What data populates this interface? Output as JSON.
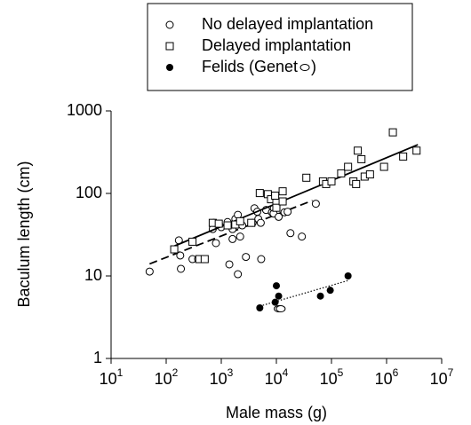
{
  "chart_data": {
    "type": "scatter",
    "x_label": "Male mass (g)",
    "y_label": "Baculum length (cm)",
    "x_log": true,
    "y_log": true,
    "xlim": [
      10,
      10000000
    ],
    "ylim": [
      1,
      1000
    ],
    "xticks": [
      {
        "value": 10,
        "label": "10",
        "sup": "1"
      },
      {
        "value": 100,
        "label": "10",
        "sup": "2"
      },
      {
        "value": 1000,
        "label": "10",
        "sup": "3"
      },
      {
        "value": 10000,
        "label": "10",
        "sup": "4"
      },
      {
        "value": 100000,
        "label": "10",
        "sup": "5"
      },
      {
        "value": 1000000,
        "label": "10",
        "sup": "6"
      },
      {
        "value": 10000000,
        "label": "10",
        "sup": "7"
      }
    ],
    "yticks": [
      1,
      10,
      100,
      1000
    ],
    "legend": "top",
    "series": [
      {
        "name": "No delayed implantation",
        "marker": "circle",
        "color": "#000",
        "fit_style": "dashed",
        "x": [
          50,
          170,
          180,
          185,
          300,
          380,
          700,
          730,
          800,
          1000,
          1300,
          1600,
          1600,
          1800,
          2000,
          2200,
          2400,
          1400,
          2000,
          2800,
          3700,
          4000,
          4500,
          4700,
          5200,
          5300,
          6500,
          8300,
          9000,
          8900,
          11000,
          14000,
          16000,
          18000,
          29000,
          52000
        ],
        "y": [
          11.3,
          27,
          17.7,
          12.2,
          16,
          16,
          37,
          44,
          25,
          39,
          45,
          37,
          28,
          49,
          55,
          30,
          41,
          13.8,
          10.5,
          17,
          44,
          66,
          60,
          49,
          44,
          16,
          63,
          59,
          66,
          57,
          52,
          59,
          60,
          33,
          30,
          75
        ],
        "fit": {
          "x": [
            50,
            45000
          ],
          "y": [
            14,
            82
          ]
        }
      },
      {
        "name": "Delayed implantation",
        "marker": "square",
        "color": "#000",
        "fit_style": "solid",
        "x": [
          140,
          300,
          400,
          500,
          700,
          900,
          1300,
          1800,
          2200,
          3500,
          5000,
          7000,
          8000,
          9500,
          10000,
          10000,
          13000,
          13000,
          35000,
          70000,
          80000,
          100000,
          150000,
          200000,
          250000,
          280000,
          300000,
          350000,
          400000,
          500000,
          900000,
          1300000,
          2000000,
          3500000
        ],
        "y": [
          21,
          26,
          16,
          16,
          44,
          43,
          41,
          42,
          46,
          44,
          101,
          98,
          85,
          94,
          77,
          67,
          106,
          80,
          155,
          140,
          130,
          140,
          175,
          210,
          140,
          130,
          330,
          260,
          160,
          170,
          210,
          550,
          280,
          330
        ],
        "fit": {
          "x": [
            140,
            3700000
          ],
          "y": [
            23,
            390
          ]
        }
      },
      {
        "name": "Felids (Genet",
        "name_suffix": ")",
        "marker": "filled",
        "color": "#000",
        "fit_style": "dotted",
        "x": [
          5000,
          10000,
          9500,
          11000,
          63000,
          95000,
          200000
        ],
        "y": [
          4.1,
          7.6,
          4.8,
          5.7,
          5.7,
          6.7,
          10
        ],
        "fit": {
          "x": [
            5000,
            200000
          ],
          "y": [
            4.3,
            8.8
          ]
        }
      },
      {
        "marker": "ellipse",
        "color": "#000",
        "x": [
          11000,
          12000
        ],
        "y": [
          4,
          4
        ]
      }
    ]
  }
}
